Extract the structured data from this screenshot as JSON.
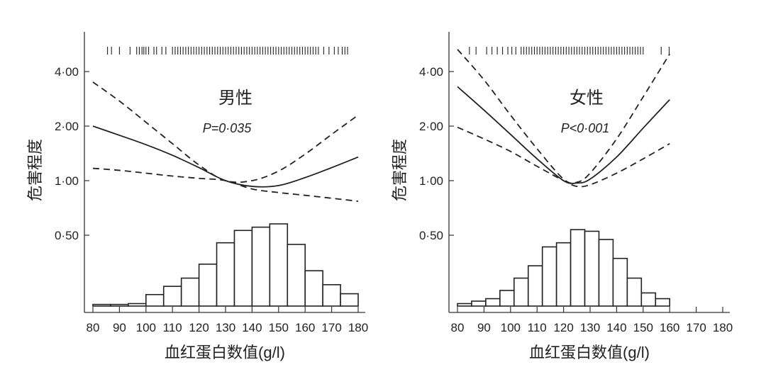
{
  "chart_data": [
    {
      "type": "line",
      "title": "男性",
      "annotation": "P=0·035",
      "xlabel": "血红蛋白数值(g/l)",
      "ylabel": "危害程度",
      "xlim": [
        80,
        180
      ],
      "y_scale": "log2",
      "xticks": [
        "80",
        "90",
        "100",
        "110",
        "120",
        "130",
        "140",
        "150",
        "160",
        "170",
        "180"
      ],
      "yticks": [
        {
          "value": 4,
          "label": "4·00"
        },
        {
          "value": 2,
          "label": "2·00"
        },
        {
          "value": 1,
          "label": "1·00"
        },
        {
          "value": 0.5,
          "label": "0·50"
        }
      ],
      "series": [
        {
          "style": "solid",
          "x": [
            80,
            90,
            100,
            110,
            120,
            130,
            140,
            150,
            160,
            170,
            180
          ],
          "y": [
            2.0,
            1.78,
            1.58,
            1.38,
            1.18,
            1.0,
            0.93,
            0.94,
            1.04,
            1.18,
            1.35
          ]
        },
        {
          "style": "dashed",
          "x": [
            80,
            90,
            100,
            110,
            120,
            130,
            140,
            150,
            160,
            170,
            180
          ],
          "y": [
            3.5,
            2.75,
            2.1,
            1.6,
            1.22,
            1.0,
            1.0,
            1.13,
            1.4,
            1.8,
            2.3
          ]
        },
        {
          "style": "dashed",
          "x": [
            80,
            90,
            100,
            110,
            120,
            130,
            140,
            150,
            160,
            170,
            180
          ],
          "y": [
            1.17,
            1.14,
            1.1,
            1.06,
            1.03,
            1.0,
            0.9,
            0.86,
            0.83,
            0.8,
            0.77
          ]
        }
      ],
      "histogram": {
        "range": [
          80,
          180
        ],
        "relative_heights": [
          2,
          2,
          3,
          14,
          24,
          34,
          51,
          77,
          92,
          96,
          100,
          75,
          43,
          26,
          15
        ]
      },
      "rug": [
        85.5,
        87,
        90,
        94,
        96.5,
        97.5,
        98.5,
        99.2,
        100,
        101,
        103,
        104,
        106,
        107.5,
        110,
        111,
        112,
        113,
        114,
        115,
        116,
        117,
        118,
        119,
        120,
        121,
        122,
        123,
        124,
        125,
        126,
        127,
        128,
        129,
        130,
        131,
        132,
        133,
        134,
        135,
        136,
        137,
        138,
        139,
        140,
        141,
        142,
        143,
        144,
        145,
        146,
        147,
        148,
        149,
        150,
        151,
        152,
        153,
        154,
        155,
        156,
        157,
        158,
        159,
        160,
        161,
        162,
        163,
        164,
        165,
        167,
        169,
        171,
        172.5,
        174,
        175,
        176
      ]
    },
    {
      "type": "line",
      "title": "女性",
      "annotation": "P<0·001",
      "xlabel": "血红蛋白数值(g/l)",
      "ylabel": "危害程度",
      "xlim": [
        80,
        180
      ],
      "y_scale": "log2",
      "xticks": [
        "80",
        "90",
        "100",
        "110",
        "120",
        "130",
        "140",
        "150",
        "160",
        "170",
        "180"
      ],
      "yticks": [
        {
          "value": 4,
          "label": "4·00"
        },
        {
          "value": 2,
          "label": "2·00"
        },
        {
          "value": 1,
          "label": "1·00"
        },
        {
          "value": 0.5,
          "label": "0·50"
        }
      ],
      "series": [
        {
          "style": "solid",
          "x": [
            80,
            90,
            100,
            110,
            120,
            125,
            130,
            140,
            150,
            160
          ],
          "y": [
            3.3,
            2.45,
            1.8,
            1.32,
            1.0,
            0.97,
            1.02,
            1.35,
            1.95,
            2.8
          ]
        },
        {
          "style": "dashed",
          "x": [
            80,
            90,
            100,
            110,
            120,
            125,
            130,
            140,
            150,
            160
          ],
          "y": [
            5.3,
            3.6,
            2.3,
            1.5,
            1.02,
            0.98,
            1.1,
            1.7,
            2.9,
            5.0
          ]
        },
        {
          "style": "dashed",
          "x": [
            80,
            90,
            100,
            110,
            120,
            125,
            130,
            140,
            150,
            160
          ],
          "y": [
            1.97,
            1.7,
            1.45,
            1.2,
            1.0,
            0.93,
            0.95,
            1.1,
            1.32,
            1.6
          ]
        }
      ],
      "histogram": {
        "range": [
          80,
          160
        ],
        "relative_heights": [
          3,
          6,
          9,
          19,
          34,
          49,
          72,
          77,
          93,
          91,
          81,
          58,
          34,
          16,
          9
        ]
      },
      "rug": [
        84.5,
        87,
        91,
        93,
        95,
        97,
        99,
        100.5,
        102,
        104,
        105,
        106,
        107,
        108,
        109,
        110,
        111,
        112,
        113,
        114,
        115,
        116,
        117,
        118,
        119,
        120,
        121,
        122,
        123,
        124,
        125,
        126,
        127,
        128,
        129,
        130,
        131,
        132,
        133,
        134,
        135,
        136,
        137,
        138,
        139,
        140,
        141,
        142,
        143,
        144,
        145,
        146,
        147,
        148,
        149,
        150,
        156.8,
        159.8
      ]
    }
  ]
}
